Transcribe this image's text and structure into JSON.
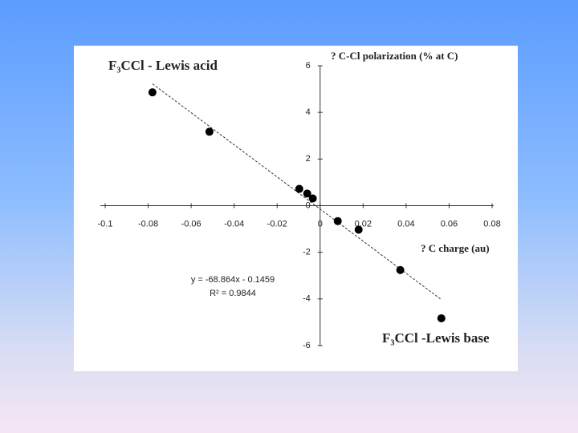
{
  "chart_data": {
    "type": "scatter",
    "x_label": "? C charge (au)",
    "y_label": "? C-Cl polarization (% at C)",
    "annotations": [
      "F₃CCl - Lewis acid",
      "F₃CCl -Lewis base"
    ],
    "trendline": {
      "equation": "y = -68.864x - 0.1459",
      "r_squared": "R² = 0.9844",
      "slope": -68.864,
      "intercept": -0.1459,
      "style": "dashed"
    },
    "x": [
      -0.078,
      -0.0515,
      -0.0097,
      -0.006,
      -0.0034,
      0.0082,
      0.0179,
      0.0373,
      0.0564
    ],
    "values": [
      4.86,
      3.17,
      0.72,
      0.52,
      0.31,
      -0.66,
      -1.03,
      -2.76,
      -4.83
    ],
    "color": "#000000",
    "xlim": [
      -0.1,
      0.08
    ],
    "ylim": [
      -6,
      6
    ],
    "xticks": [
      -0.1,
      -0.08,
      -0.06,
      -0.04,
      -0.02,
      0,
      0.02,
      0.04,
      0.06,
      0.08
    ],
    "yticks": [
      6,
      4,
      2,
      0,
      -2,
      -4,
      -6
    ]
  }
}
